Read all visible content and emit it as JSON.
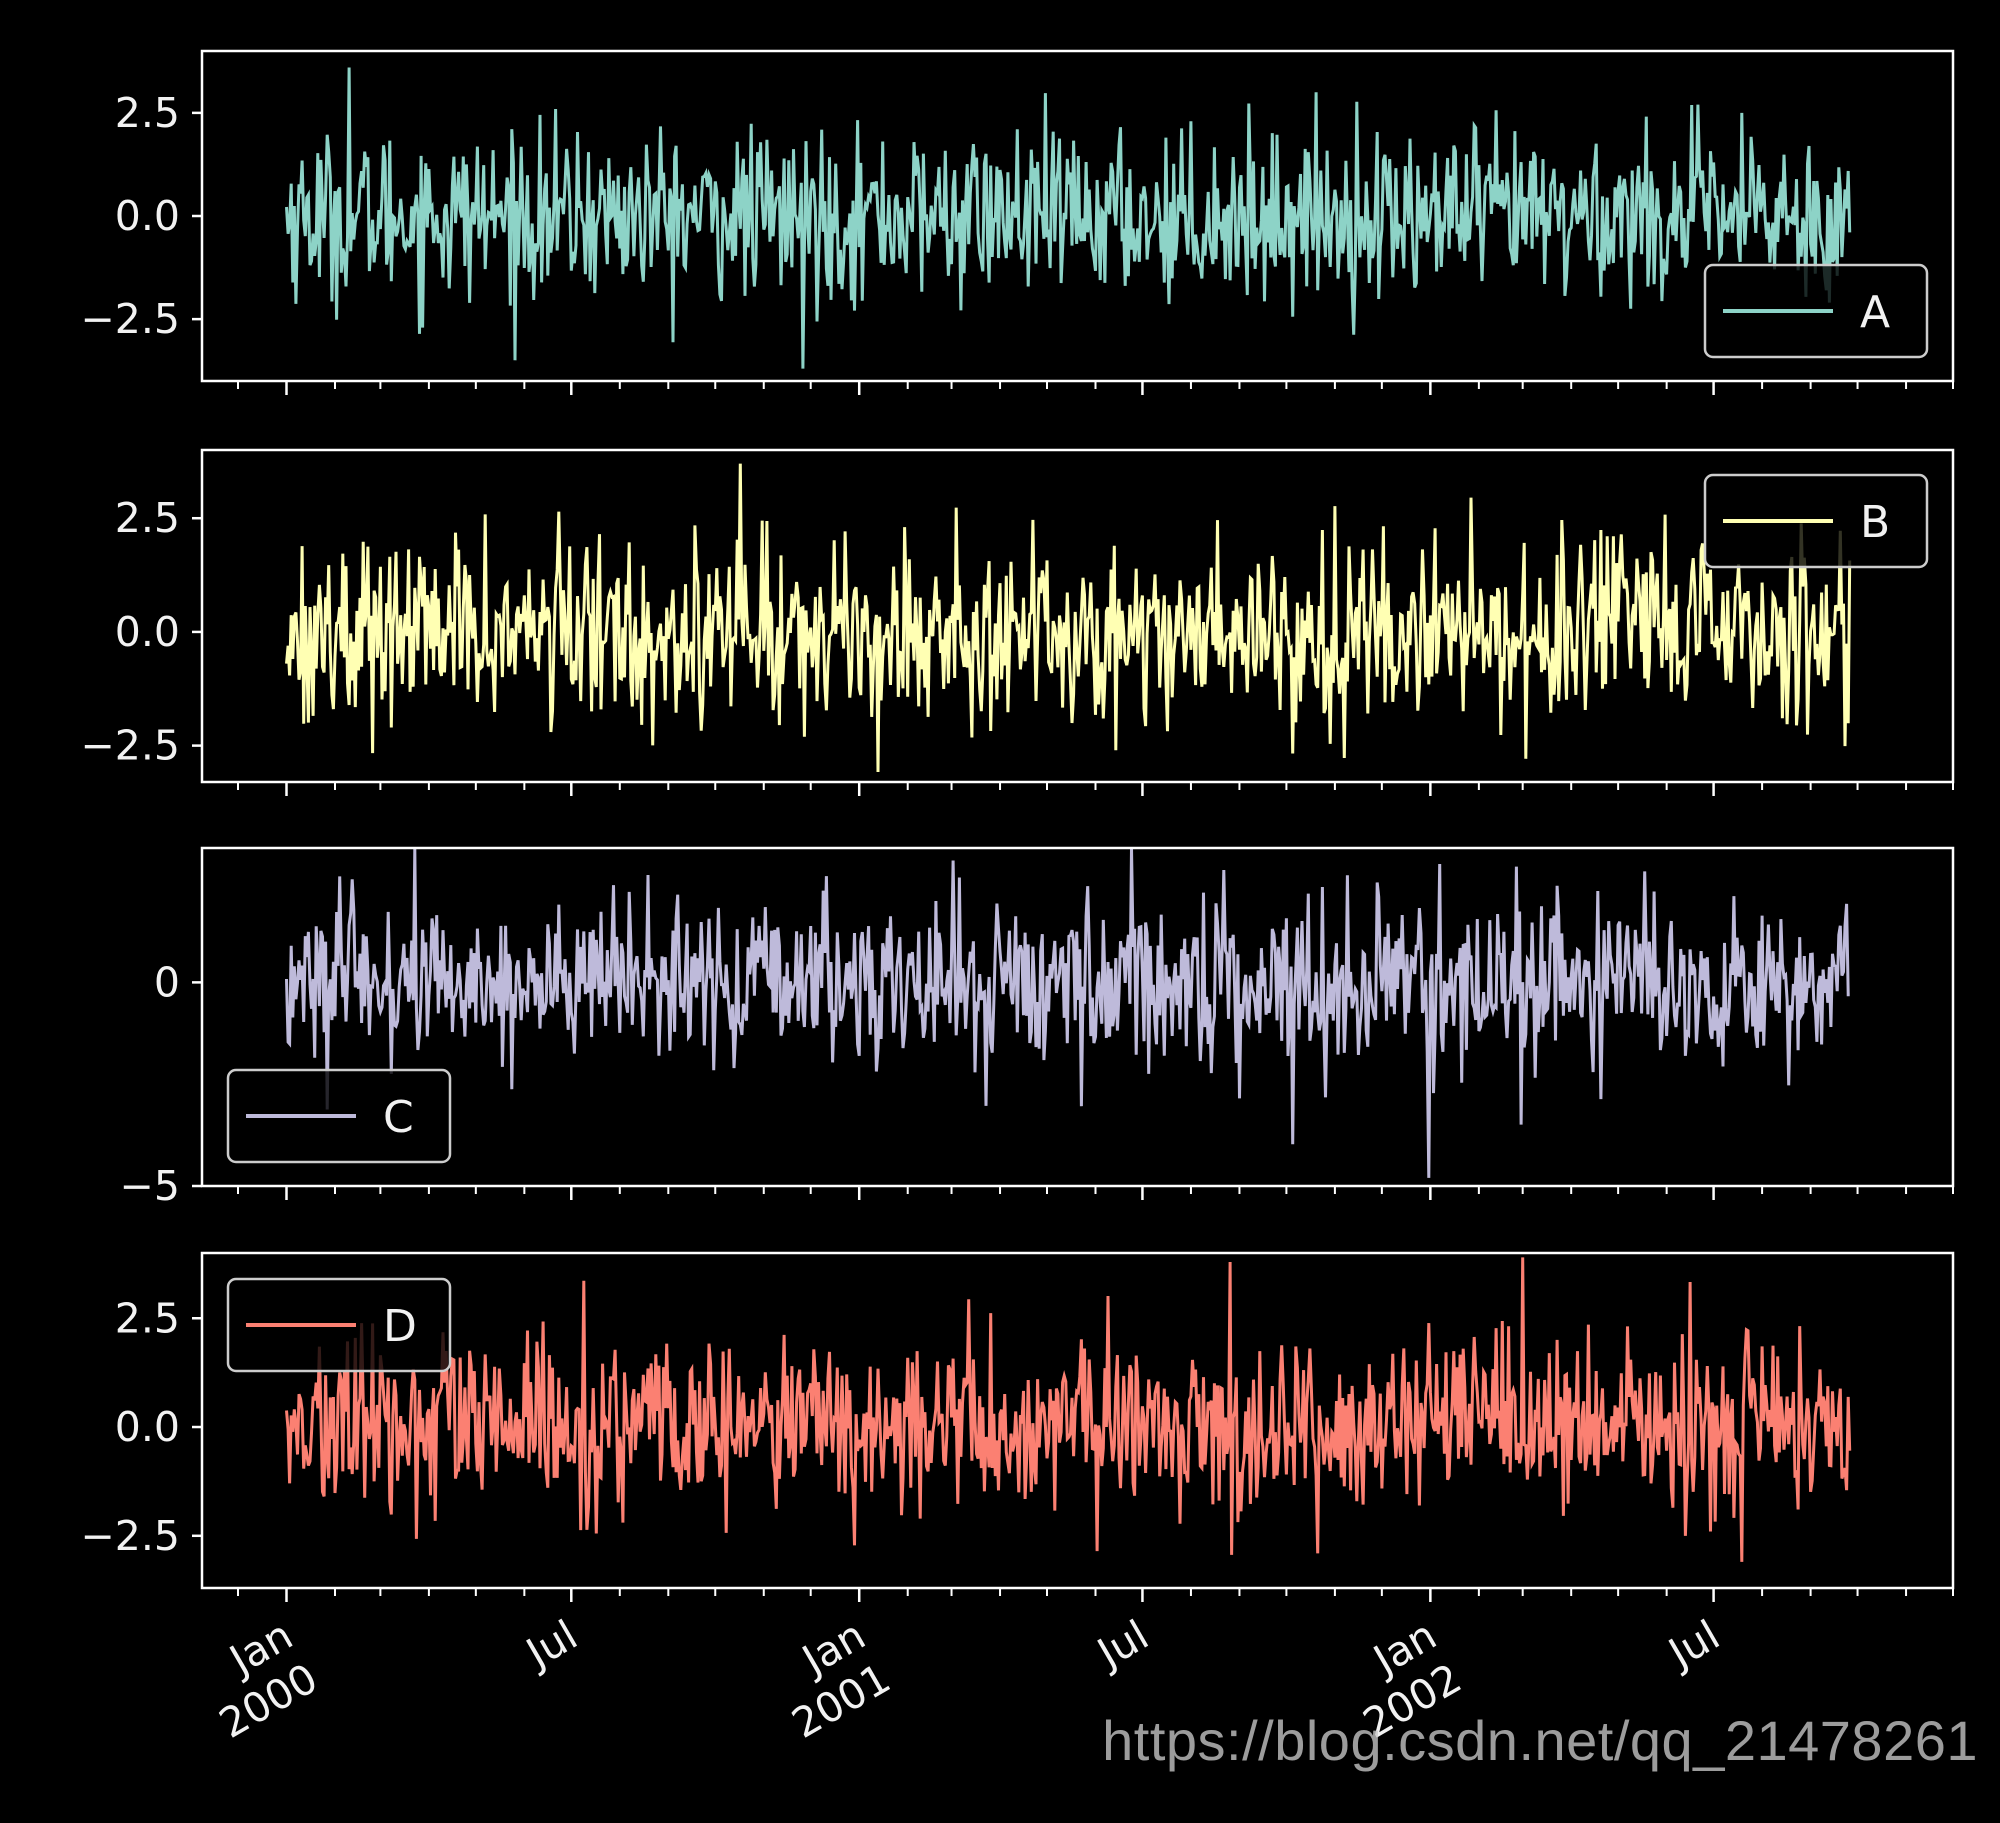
{
  "chart_data": [
    {
      "type": "line",
      "series": [
        {
          "name": "A",
          "color": "#8dd3c7"
        }
      ],
      "ylim": [
        -4.0,
        4.0
      ],
      "yticks": [
        -2.5,
        0.0,
        2.5
      ],
      "ytick_labels": [
        "−2.5",
        "0.0",
        "2.5"
      ],
      "legend_loc": "lower-right",
      "spike_max": 3.6,
      "spike_min": -3.7,
      "noise_std": 1.0
    },
    {
      "type": "line",
      "series": [
        {
          "name": "B",
          "color": "#ffffb3"
        }
      ],
      "ylim": [
        -3.3,
        4.0
      ],
      "yticks": [
        -2.5,
        0.0,
        2.5
      ],
      "ytick_labels": [
        "−2.5",
        "0.0",
        "2.5"
      ],
      "legend_loc": "upper-right",
      "spike_max": 3.7,
      "spike_min": -2.6,
      "noise_std": 1.0
    },
    {
      "type": "line",
      "series": [
        {
          "name": "C",
          "color": "#bebada"
        }
      ],
      "ylim": [
        -5.0,
        3.3
      ],
      "yticks": [
        -5,
        0
      ],
      "ytick_labels": [
        "−5",
        "0"
      ],
      "legend_loc": "lower-left",
      "spike_max": 3.3,
      "spike_min": -4.8,
      "noise_std": 1.0
    },
    {
      "type": "line",
      "series": [
        {
          "name": "D",
          "color": "#fb8072"
        }
      ],
      "ylim": [
        -3.7,
        4.0
      ],
      "yticks": [
        -2.5,
        0.0,
        2.5
      ],
      "ytick_labels": [
        "−2.5",
        "0.0",
        "2.5"
      ],
      "legend_loc": "upper-left",
      "spike_max": 3.9,
      "spike_min": -3.1,
      "noise_std": 1.0
    }
  ],
  "x_axis": {
    "start": "2000-01-01",
    "end": "2002-09-26",
    "xlim": [
      "1999-11-08",
      "2002-12-01"
    ],
    "major_ticks": [
      {
        "date": "2000-01-01",
        "line1": "Jan",
        "line2": "2000"
      },
      {
        "date": "2000-07-01",
        "line1": "Jul",
        "line2": ""
      },
      {
        "date": "2001-01-01",
        "line1": "Jan",
        "line2": "2001"
      },
      {
        "date": "2001-07-01",
        "line1": "Jul",
        "line2": ""
      },
      {
        "date": "2002-01-01",
        "line1": "Jan",
        "line2": "2002"
      },
      {
        "date": "2002-07-01",
        "line1": "Jul",
        "line2": ""
      }
    ]
  },
  "style": {
    "axes_color": "#ffffff",
    "background": "#000000"
  },
  "watermark": "https://blog.csdn.net/qq_21478261"
}
